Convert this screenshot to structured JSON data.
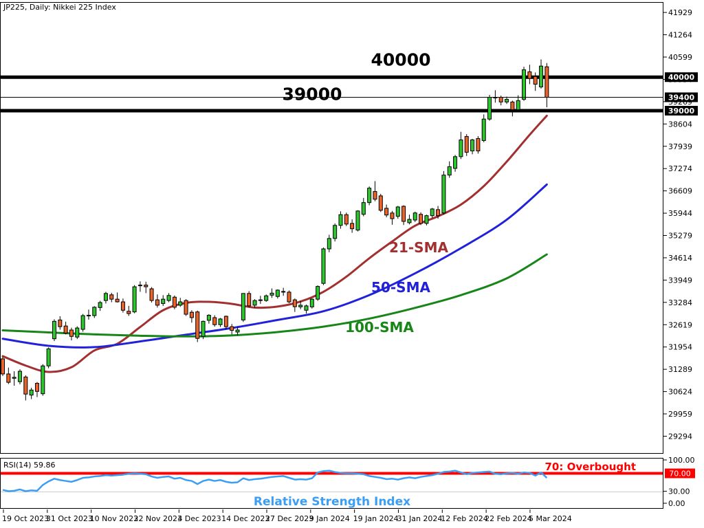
{
  "window": {
    "title": "JP225, Daily:  Nikkei 225 Index"
  },
  "colors": {
    "background": "#FFFFFF",
    "frame": "#000000",
    "candle_up": "#2DC72D",
    "candle_down": "#EA6329",
    "candle_outline": "#000000",
    "sma21": "#A33030",
    "sma50": "#2121D9",
    "sma100": "#178517",
    "rsi_line": "#3B9EF5",
    "overbought_line": "#FF0000",
    "level_line": "#000000",
    "badge_bg": "#000000",
    "badge_text": "#FFFFFF",
    "rsi_30_line": "#CCCCCC"
  },
  "annotations": {
    "level_40000": "40000",
    "level_39000": "39000",
    "sma21_label": "21-SMA",
    "sma50_label": "50-SMA",
    "sma100_label": "100-SMA",
    "overbought_label": "70: Overbought",
    "rsi_status": "RSI(14) 59.86",
    "rsi_name": "Relative Strength Index"
  },
  "price_scale": {
    "ticks": [
      41929,
      41264,
      40599,
      39934,
      39269,
      38604,
      37939,
      37274,
      36609,
      35944,
      35279,
      34614,
      33949,
      33284,
      32619,
      31954,
      31289,
      30624,
      29959,
      29294
    ],
    "badges": [
      {
        "label": "40000",
        "value": 40000
      },
      {
        "label": "39400",
        "value": 39400
      },
      {
        "label": "39000",
        "value": 39000
      }
    ]
  },
  "rsi_scale": {
    "ticks": [
      {
        "label": "100.00",
        "value": 100,
        "badge": false
      },
      {
        "label": "70.00",
        "value": 70,
        "badge": true
      },
      {
        "label": "30.00",
        "value": 30,
        "badge": false
      },
      {
        "label": "0.00",
        "value": 0,
        "badge": false
      }
    ]
  },
  "time_scale": {
    "labels": [
      "19 Oct 2023",
      "31 Oct 2023",
      "10 Nov 2023",
      "22 Nov 2023",
      "4 Dec 2023",
      "14 Dec 2023",
      "27 Dec 2023",
      "9 Jan 2024",
      "19 Jan 2024",
      "31 Jan 2024",
      "12 Feb 2024",
      "22 Feb 2024",
      "5 Mar 2024"
    ]
  },
  "chart_data": {
    "type": "candlestick",
    "symbol": "JP225",
    "timeframe": "Daily",
    "title": "Nikkei 225 Index",
    "y_range": [
      28770,
      42240
    ],
    "levels": [
      {
        "value": 40000,
        "thick": true
      },
      {
        "value": 39000,
        "thick": true
      }
    ],
    "current_price": 39400,
    "columns": [
      "open",
      "high",
      "low",
      "close"
    ],
    "candles": [
      [
        31600,
        31660,
        31090,
        31150
      ],
      [
        31150,
        31340,
        30850,
        30900
      ],
      [
        31020,
        31230,
        30800,
        31050
      ],
      [
        30920,
        31290,
        30840,
        31230
      ],
      [
        31060,
        31110,
        30360,
        30550
      ],
      [
        30520,
        30740,
        30400,
        30670
      ],
      [
        30870,
        30910,
        30460,
        30630
      ],
      [
        30560,
        31440,
        30500,
        31390
      ],
      [
        31390,
        31940,
        31320,
        31900
      ],
      [
        32200,
        32780,
        32130,
        32720
      ],
      [
        32760,
        32870,
        32470,
        32560
      ],
      [
        32580,
        32710,
        32330,
        32370
      ],
      [
        32460,
        32530,
        32150,
        32270
      ],
      [
        32250,
        32570,
        32190,
        32520
      ],
      [
        32480,
        32940,
        32410,
        32890
      ],
      [
        32890,
        33070,
        32770,
        32900
      ],
      [
        32890,
        33170,
        32820,
        33140
      ],
      [
        33130,
        33330,
        33030,
        33280
      ],
      [
        33340,
        33600,
        33250,
        33550
      ],
      [
        33510,
        33570,
        33290,
        33380
      ],
      [
        33380,
        33580,
        33280,
        33300
      ],
      [
        33300,
        33400,
        32980,
        33050
      ],
      [
        33020,
        33180,
        32880,
        32950
      ],
      [
        33000,
        33800,
        32960,
        33750
      ],
      [
        33780,
        33910,
        33600,
        33800
      ],
      [
        33800,
        33900,
        33560,
        33750
      ],
      [
        33690,
        33740,
        33280,
        33340
      ],
      [
        33360,
        33520,
        33130,
        33200
      ],
      [
        33250,
        33500,
        33180,
        33380
      ],
      [
        33340,
        33560,
        33290,
        33490
      ],
      [
        33440,
        33490,
        33080,
        33140
      ],
      [
        33200,
        33420,
        33150,
        33300
      ],
      [
        33340,
        33380,
        32880,
        32930
      ],
      [
        32990,
        33050,
        32680,
        32830
      ],
      [
        33000,
        33040,
        32100,
        32210
      ],
      [
        32270,
        32740,
        32190,
        32720
      ],
      [
        32750,
        32930,
        32650,
        32900
      ],
      [
        32830,
        32900,
        32560,
        32620
      ],
      [
        32620,
        32820,
        32550,
        32790
      ],
      [
        32870,
        32890,
        32480,
        32560
      ],
      [
        32560,
        32640,
        32330,
        32450
      ],
      [
        32400,
        32550,
        32300,
        32460
      ],
      [
        32760,
        33560,
        32700,
        33550
      ],
      [
        33550,
        33620,
        33140,
        33180
      ],
      [
        33200,
        33380,
        33120,
        33340
      ],
      [
        33350,
        33480,
        33240,
        33360
      ],
      [
        33340,
        33520,
        33300,
        33480
      ],
      [
        33500,
        33700,
        33420,
        33560
      ],
      [
        33460,
        33670,
        33400,
        33650
      ],
      [
        33600,
        33720,
        33480,
        33610
      ],
      [
        33590,
        33640,
        33260,
        33300
      ],
      [
        33360,
        33400,
        33000,
        33155
      ],
      [
        33150,
        33330,
        33080,
        33200
      ],
      [
        33050,
        33220,
        32950,
        33180
      ],
      [
        33150,
        33400,
        33100,
        33380
      ],
      [
        33380,
        33790,
        33330,
        33760
      ],
      [
        33850,
        34920,
        33800,
        34880
      ],
      [
        34880,
        35300,
        34780,
        35190
      ],
      [
        35190,
        35640,
        35100,
        35580
      ],
      [
        35580,
        36000,
        35480,
        35900
      ],
      [
        35900,
        35960,
        35560,
        35620
      ],
      [
        35640,
        35760,
        35360,
        35480
      ],
      [
        35440,
        36030,
        35400,
        36010
      ],
      [
        35910,
        36400,
        35850,
        36260
      ],
      [
        36260,
        36740,
        36180,
        36690
      ],
      [
        36590,
        36900,
        36300,
        36360
      ],
      [
        36460,
        36520,
        35980,
        36030
      ],
      [
        36090,
        36200,
        35820,
        35890
      ],
      [
        35950,
        36010,
        35600,
        35780
      ],
      [
        35850,
        36160,
        35780,
        36130
      ],
      [
        36150,
        36180,
        35590,
        35700
      ],
      [
        35660,
        35900,
        35610,
        35760
      ],
      [
        35740,
        35990,
        35680,
        35950
      ],
      [
        35910,
        35970,
        35590,
        35640
      ],
      [
        35640,
        35900,
        35580,
        35870
      ],
      [
        35870,
        36100,
        35800,
        36070
      ],
      [
        36050,
        36160,
        35780,
        35870
      ],
      [
        35950,
        37200,
        35900,
        37080
      ],
      [
        37080,
        37490,
        37000,
        37330
      ],
      [
        37280,
        37680,
        37180,
        37630
      ],
      [
        37630,
        38370,
        37560,
        38130
      ],
      [
        38230,
        38300,
        37650,
        37760
      ],
      [
        37800,
        38160,
        37700,
        38130
      ],
      [
        38170,
        38240,
        37720,
        37800
      ],
      [
        38110,
        38890,
        38060,
        38750
      ],
      [
        38750,
        39470,
        38700,
        39400
      ],
      [
        39400,
        39610,
        39240,
        39380
      ],
      [
        39400,
        39450,
        39160,
        39260
      ],
      [
        39260,
        39420,
        39200,
        39340
      ],
      [
        39260,
        39300,
        38830,
        39030
      ],
      [
        39030,
        39460,
        38980,
        39300
      ],
      [
        39340,
        40310,
        39290,
        40220
      ],
      [
        40160,
        40370,
        39790,
        39960
      ],
      [
        40020,
        40140,
        39590,
        39790
      ],
      [
        39710,
        40530,
        39660,
        40330
      ],
      [
        40310,
        40420,
        39100,
        39400
      ]
    ],
    "smas": [
      {
        "name": "21-SMA",
        "period": 21,
        "color": "#A33030",
        "points": [
          [
            0,
            31680
          ],
          [
            4,
            31400
          ],
          [
            8,
            31210
          ],
          [
            12,
            31350
          ],
          [
            16,
            31850
          ],
          [
            20,
            32050
          ],
          [
            24,
            32550
          ],
          [
            28,
            33050
          ],
          [
            32,
            33270
          ],
          [
            36,
            33300
          ],
          [
            40,
            33240
          ],
          [
            44,
            33130
          ],
          [
            48,
            33160
          ],
          [
            52,
            33310
          ],
          [
            56,
            33600
          ],
          [
            60,
            34050
          ],
          [
            64,
            34600
          ],
          [
            68,
            35100
          ],
          [
            72,
            35570
          ],
          [
            76,
            35850
          ],
          [
            80,
            36200
          ],
          [
            84,
            36750
          ],
          [
            88,
            37480
          ],
          [
            92,
            38280
          ],
          [
            95,
            38850
          ]
        ]
      },
      {
        "name": "50-SMA",
        "period": 50,
        "color": "#2121D9",
        "points": [
          [
            0,
            32200
          ],
          [
            8,
            31990
          ],
          [
            16,
            31950
          ],
          [
            24,
            32120
          ],
          [
            32,
            32320
          ],
          [
            40,
            32520
          ],
          [
            48,
            32760
          ],
          [
            56,
            33020
          ],
          [
            64,
            33500
          ],
          [
            72,
            34150
          ],
          [
            80,
            34900
          ],
          [
            88,
            35750
          ],
          [
            95,
            36800
          ]
        ]
      },
      {
        "name": "100-SMA",
        "period": 100,
        "color": "#178517",
        "points": [
          [
            0,
            32450
          ],
          [
            8,
            32390
          ],
          [
            16,
            32330
          ],
          [
            24,
            32290
          ],
          [
            32,
            32270
          ],
          [
            40,
            32300
          ],
          [
            48,
            32400
          ],
          [
            56,
            32560
          ],
          [
            64,
            32800
          ],
          [
            72,
            33120
          ],
          [
            80,
            33500
          ],
          [
            88,
            34000
          ],
          [
            95,
            34715
          ]
        ]
      }
    ],
    "rsi": {
      "period": 14,
      "current": 59.86,
      "overbought_level": 70,
      "oversold_level": 30,
      "values": [
        33,
        30,
        31,
        34,
        30,
        32,
        31,
        44,
        52,
        58,
        55,
        53,
        51,
        55,
        60,
        61,
        63,
        64,
        66,
        65,
        66,
        67,
        69,
        70,
        69,
        68,
        63,
        60,
        62,
        63,
        58,
        60,
        55,
        53,
        46,
        53,
        56,
        53,
        55,
        51,
        49,
        50,
        59,
        55,
        57,
        58,
        60,
        62,
        63,
        64,
        60,
        56,
        57,
        56,
        59,
        72,
        75,
        76,
        73,
        71,
        70,
        70,
        69,
        68,
        64,
        62,
        60,
        57,
        58,
        56,
        59,
        61,
        59,
        62,
        64,
        66,
        69,
        73,
        74,
        76,
        72,
        68,
        71,
        72,
        73,
        74,
        69,
        68,
        70,
        71,
        69,
        72,
        71,
        65,
        72,
        59.86
      ]
    }
  }
}
